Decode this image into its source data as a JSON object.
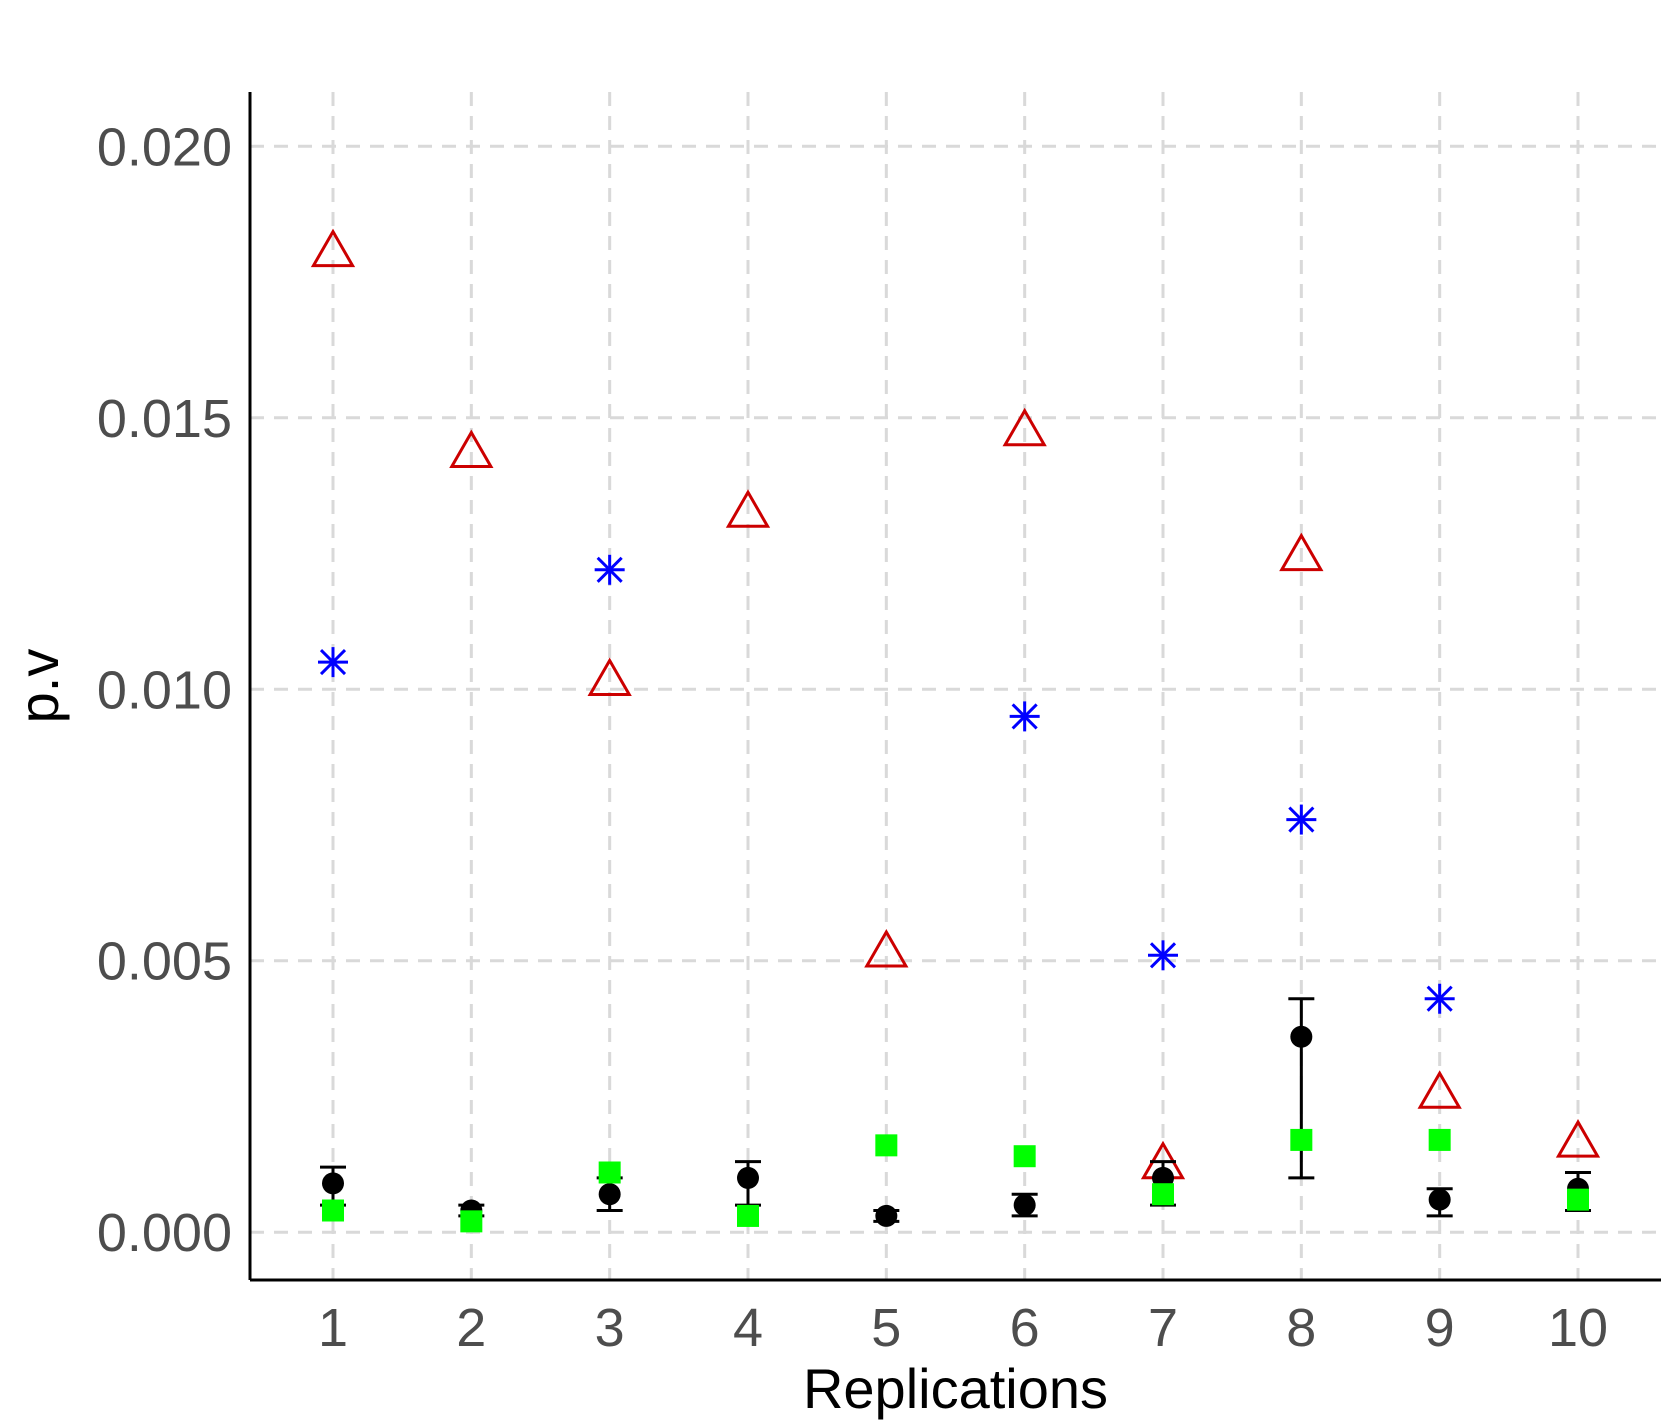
{
  "chart_data": {
    "type": "scatter",
    "title": "",
    "xlabel": "Replications",
    "ylabel": "p.v",
    "xlim": [
      0.4,
      10.6
    ],
    "ylim": [
      -0.00088,
      0.021
    ],
    "x_ticks": [
      1,
      2,
      3,
      4,
      5,
      6,
      7,
      8,
      9,
      10
    ],
    "y_ticks": [
      0.0,
      0.005,
      0.01,
      0.015,
      0.02
    ],
    "y_tick_labels": [
      "0.000",
      "0.005",
      "0.010",
      "0.015",
      "0.020"
    ],
    "grid": true,
    "legend": "none",
    "series": [
      {
        "marker": "open-triangle",
        "color": "#cc0000",
        "x": [
          1,
          2,
          3,
          4,
          5,
          6,
          7,
          8,
          9,
          10
        ],
        "y": [
          0.0181,
          0.0144,
          0.0102,
          0.0133,
          0.0052,
          0.0148,
          0.0013,
          0.0125,
          0.0026,
          0.0017
        ]
      },
      {
        "marker": "asterisk",
        "color": "#0000ff",
        "x": [
          1,
          3,
          6,
          7,
          8,
          9
        ],
        "y": [
          0.0105,
          0.0122,
          0.0095,
          0.0051,
          0.0076,
          0.0043
        ]
      },
      {
        "marker": "filled-circle",
        "color": "#000000",
        "x": [
          1,
          2,
          3,
          4,
          5,
          6,
          7,
          8,
          9,
          10
        ],
        "y": [
          0.0009,
          0.0004,
          0.0007,
          0.001,
          0.0003,
          0.0005,
          0.001,
          0.0036,
          0.0006,
          0.0008
        ],
        "error_low": [
          0.0005,
          0.0003,
          0.0004,
          0.0005,
          0.0002,
          0.0003,
          0.0005,
          0.001,
          0.0003,
          0.0004
        ],
        "error_high": [
          0.0012,
          0.0005,
          0.001,
          0.0013,
          0.0004,
          0.0007,
          0.0013,
          0.0043,
          0.0008,
          0.0011
        ]
      },
      {
        "marker": "filled-square",
        "color": "#00ff00",
        "x": [
          1,
          2,
          3,
          4,
          5,
          6,
          7,
          8,
          9,
          10
        ],
        "y": [
          0.0004,
          0.0002,
          0.0011,
          0.0003,
          0.0016,
          0.0014,
          0.0007,
          0.0017,
          0.0017,
          0.0006
        ]
      }
    ]
  }
}
